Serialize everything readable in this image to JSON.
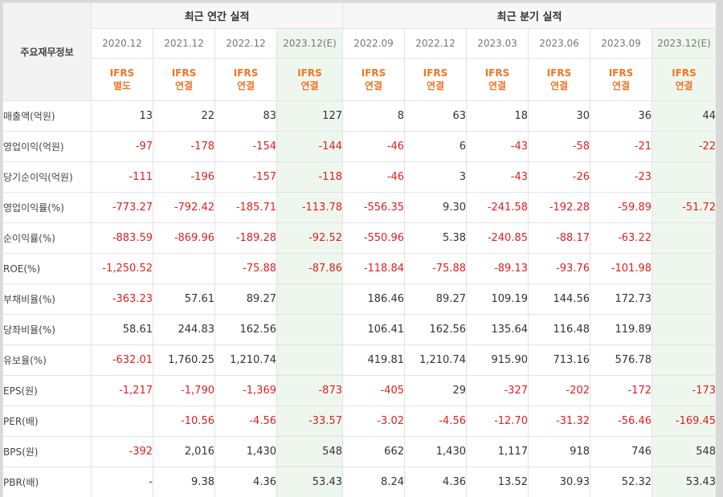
{
  "corner_label": "주요재무정보",
  "groups": {
    "annual": "최근 연간 실적",
    "quarterly": "최근 분기 실적"
  },
  "periods": [
    {
      "label": "2020.12",
      "ifrs": "IFRS",
      "basis": "별도",
      "est": false
    },
    {
      "label": "2021.12",
      "ifrs": "IFRS",
      "basis": "연결",
      "est": false
    },
    {
      "label": "2022.12",
      "ifrs": "IFRS",
      "basis": "연결",
      "est": false
    },
    {
      "label": "2023.12(E)",
      "ifrs": "IFRS",
      "basis": "연결",
      "est": true
    },
    {
      "label": "2022.09",
      "ifrs": "IFRS",
      "basis": "연결",
      "est": false
    },
    {
      "label": "2022.12",
      "ifrs": "IFRS",
      "basis": "연결",
      "est": false
    },
    {
      "label": "2023.03",
      "ifrs": "IFRS",
      "basis": "연결",
      "est": false
    },
    {
      "label": "2023.06",
      "ifrs": "IFRS",
      "basis": "연결",
      "est": false
    },
    {
      "label": "2023.09",
      "ifrs": "IFRS",
      "basis": "연결",
      "est": false
    },
    {
      "label": "2023.12(E)",
      "ifrs": "IFRS",
      "basis": "연결",
      "est": true
    }
  ],
  "rows": [
    {
      "label": "매출액(억원)",
      "sep": false,
      "values": [
        "13",
        "22",
        "83",
        "127",
        "8",
        "63",
        "18",
        "30",
        "36",
        "44"
      ]
    },
    {
      "label": "영업이익(억원)",
      "sep": false,
      "values": [
        "-97",
        "-178",
        "-154",
        "-144",
        "-46",
        "6",
        "-43",
        "-58",
        "-21",
        "-22"
      ]
    },
    {
      "label": "당기순이익(억원)",
      "sep": false,
      "values": [
        "-111",
        "-196",
        "-157",
        "-118",
        "-46",
        "3",
        "-43",
        "-26",
        "-23",
        ""
      ]
    },
    {
      "label": "영업이익률(%)",
      "sep": true,
      "values": [
        "-773.27",
        "-792.42",
        "-185.71",
        "-113.78",
        "-556.35",
        "9.30",
        "-241.58",
        "-192.28",
        "-59.89",
        "-51.72"
      ]
    },
    {
      "label": "순이익률(%)",
      "sep": false,
      "values": [
        "-883.59",
        "-869.96",
        "-189.28",
        "-92.52",
        "-550.96",
        "5.38",
        "-240.85",
        "-88.17",
        "-63.22",
        ""
      ]
    },
    {
      "label": "ROE(%)",
      "sep": false,
      "values": [
        "-1,250.52",
        "",
        "-75.88",
        "-87.86",
        "-118.84",
        "-75.88",
        "-89.13",
        "-93.76",
        "-101.98",
        ""
      ]
    },
    {
      "label": "부채비율(%)",
      "sep": true,
      "values": [
        "-363.23",
        "57.61",
        "89.27",
        "",
        "186.46",
        "89.27",
        "109.19",
        "144.56",
        "172.73",
        ""
      ]
    },
    {
      "label": "당좌비율(%)",
      "sep": false,
      "values": [
        "58.61",
        "244.83",
        "162.56",
        "",
        "106.41",
        "162.56",
        "135.64",
        "116.48",
        "119.89",
        ""
      ]
    },
    {
      "label": "유보율(%)",
      "sep": false,
      "values": [
        "-632.01",
        "1,760.25",
        "1,210.74",
        "",
        "419.81",
        "1,210.74",
        "915.90",
        "713.16",
        "576.78",
        ""
      ]
    },
    {
      "label": "EPS(원)",
      "sep": true,
      "values": [
        "-1,217",
        "-1,790",
        "-1,369",
        "-873",
        "-405",
        "29",
        "-327",
        "-202",
        "-172",
        "-173"
      ]
    },
    {
      "label": "PER(배)",
      "sep": false,
      "values": [
        "",
        "-10.56",
        "-4.56",
        "-33.57",
        "-3.02",
        "-4.56",
        "-12.70",
        "-31.32",
        "-56.46",
        "-169.45"
      ]
    },
    {
      "label": "BPS(원)",
      "sep": false,
      "values": [
        "-392",
        "2,016",
        "1,430",
        "548",
        "662",
        "1,430",
        "1,117",
        "918",
        "746",
        "548"
      ]
    },
    {
      "label": "PBR(배)",
      "sep": false,
      "values": [
        "-",
        "9.38",
        "4.36",
        "53.43",
        "8.24",
        "4.36",
        "13.52",
        "30.93",
        "52.32",
        "53.43"
      ]
    }
  ]
}
